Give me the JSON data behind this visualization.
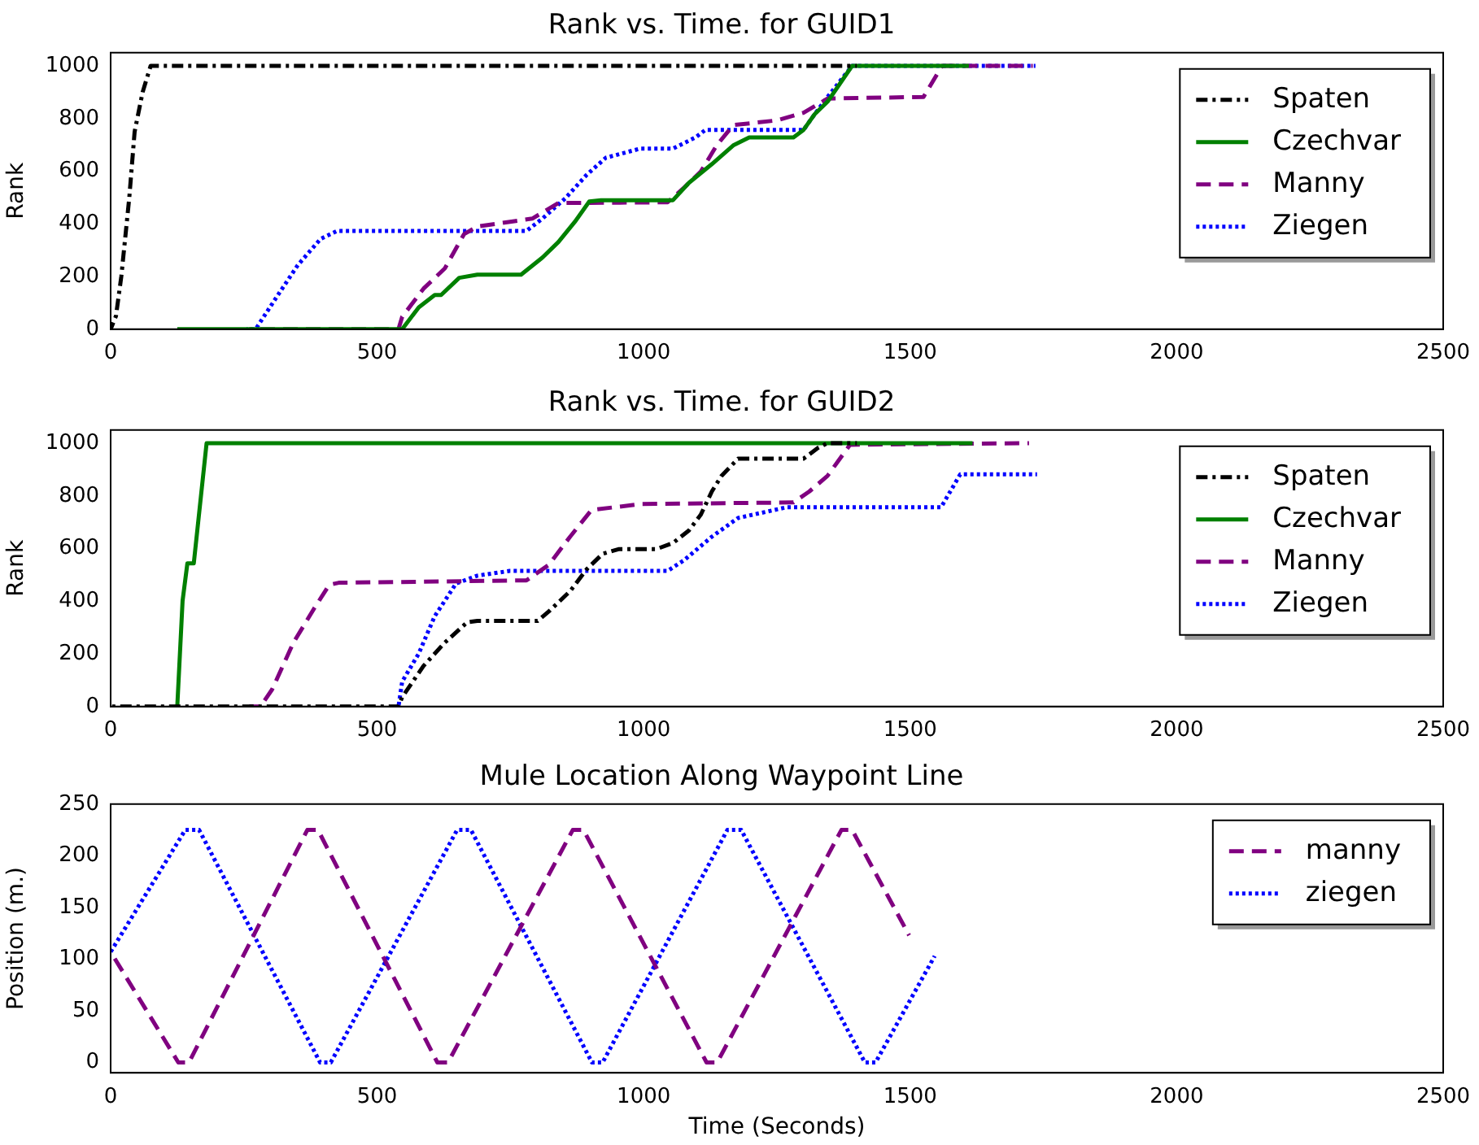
{
  "chart_data": [
    {
      "type": "line",
      "title": "Rank vs. Time. for GUID1",
      "ylabel": "Rank",
      "xlim": [
        0,
        2500
      ],
      "xticks": [
        0,
        500,
        1000,
        1500,
        2000,
        2500
      ],
      "ylim": [
        0,
        1050
      ],
      "yticks": [
        0,
        200,
        400,
        600,
        800,
        1000
      ],
      "grid": false,
      "legend": "top right",
      "series": [
        {
          "name": "Spaten",
          "color": "#000000",
          "line_style": "dashdot",
          "x": [
            0,
            10,
            20,
            35,
            45,
            60,
            75,
            1400
          ],
          "values": [
            0,
            50,
            200,
            500,
            750,
            900,
            1000,
            1000
          ]
        },
        {
          "name": "Czechvar",
          "color": "#008000",
          "line_style": "solid",
          "x": [
            125,
            540,
            547,
            578,
            608,
            620,
            654,
            688,
            770,
            810,
            840,
            871,
            898,
            920,
            1055,
            1085,
            1128,
            1168,
            1198,
            1281,
            1300,
            1321,
            1345,
            1391,
            1610
          ],
          "values": [
            0,
            0,
            0,
            83,
            130,
            130,
            195,
            207,
            207,
            272,
            331,
            408,
            485,
            490,
            490,
            556,
            627,
            698,
            728,
            728,
            757,
            817,
            864,
            1000,
            1000
          ]
        },
        {
          "name": "Manny",
          "color": "#800080",
          "line_style": "dashed",
          "x": [
            260,
            540,
            547,
            587,
            627,
            663,
            688,
            791,
            840,
            1045,
            1076,
            1107,
            1137,
            1168,
            1250,
            1300,
            1345,
            1525,
            1560,
            1730
          ],
          "values": [
            0,
            0,
            47,
            154,
            231,
            361,
            390,
            420,
            479,
            482,
            538,
            598,
            698,
            775,
            793,
            822,
            876,
            882,
            1000,
            1000
          ]
        },
        {
          "name": "Ziegen",
          "color": "#0000ff",
          "line_style": "dotted",
          "x": [
            255,
            272,
            312,
            351,
            394,
            425,
            780,
            810,
            853,
            893,
            929,
            994,
            1055,
            1097,
            1116,
            1300,
            1321,
            1345,
            1391,
            1735
          ],
          "values": [
            0,
            0,
            124,
            243,
            343,
            373,
            373,
            420,
            497,
            586,
            651,
            686,
            686,
            728,
            757,
            757,
            817,
            882,
            1000,
            1000
          ]
        }
      ]
    },
    {
      "type": "line",
      "title": "Rank vs. Time. for GUID2",
      "ylabel": "Rank",
      "xlim": [
        0,
        2500
      ],
      "xticks": [
        0,
        500,
        1000,
        1500,
        2000,
        2500
      ],
      "ylim": [
        0,
        1050
      ],
      "yticks": [
        0,
        200,
        400,
        600,
        800,
        1000
      ],
      "grid": false,
      "legend": "top right",
      "series": [
        {
          "name": "Spaten",
          "color": "#000000",
          "line_style": "dashdot",
          "x": [
            0,
            540,
            547,
            587,
            627,
            669,
            688,
            801,
            822,
            862,
            893,
            923,
            954,
            1024,
            1055,
            1085,
            1107,
            1128,
            1146,
            1177,
            1300,
            1327,
            1345,
            1400
          ],
          "values": [
            0,
            0,
            36,
            154,
            243,
            320,
            325,
            325,
            361,
            438,
            521,
            580,
            598,
            598,
            621,
            669,
            728,
            817,
            876,
            941,
            941,
            982,
            1000,
            1000
          ]
        },
        {
          "name": "Czechvar",
          "color": "#008000",
          "line_style": "solid",
          "x": [
            125,
            135,
            144,
            156,
            180,
            1617
          ],
          "values": [
            0,
            402,
            544,
            544,
            1000,
            1000
          ]
        },
        {
          "name": "Manny",
          "color": "#800080",
          "line_style": "dashed",
          "x": [
            260,
            281,
            303,
            343,
            382,
            410,
            428,
            780,
            822,
            862,
            902,
            994,
            1281,
            1311,
            1345,
            1387,
            1723
          ],
          "values": [
            0,
            0,
            65,
            243,
            373,
            462,
            470,
            479,
            538,
            645,
            746,
            769,
            775,
            817,
            876,
            994,
            1000
          ]
        },
        {
          "name": "Ziegen",
          "color": "#0000ff",
          "line_style": "dotted",
          "x": [
            540,
            547,
            578,
            608,
            648,
            688,
            749,
            1045,
            1076,
            1128,
            1177,
            1269,
            1558,
            1594,
            1738
          ],
          "values": [
            0,
            95,
            201,
            343,
            467,
            497,
            515,
            515,
            556,
            645,
            716,
            757,
            757,
            882,
            882
          ]
        }
      ]
    },
    {
      "type": "line",
      "title": "Mule Location Along Waypoint Line",
      "xlabel": "Time (Seconds)",
      "ylabel": "Position (m.)",
      "xlim": [
        0,
        2500
      ],
      "xticks": [
        0,
        500,
        1000,
        1500,
        2000,
        2500
      ],
      "ylim": [
        -10,
        250
      ],
      "yticks": [
        0,
        50,
        100,
        150,
        200,
        250
      ],
      "grid": false,
      "legend": "top right",
      "series": [
        {
          "name": "manny",
          "color": "#800080",
          "line_style": "dashed",
          "x": [
            0,
            127,
            147,
            369,
            389,
            613,
            633,
            867,
            887,
            1118,
            1138,
            1371,
            1391,
            1498
          ],
          "values": [
            107,
            0,
            0,
            225,
            225,
            0,
            0,
            225,
            225,
            0,
            0,
            225,
            225,
            123
          ]
        },
        {
          "name": "ziegen",
          "color": "#0000ff",
          "line_style": "dotted",
          "x": [
            0,
            140,
            166,
            393,
            413,
            650,
            676,
            903,
            923,
            1157,
            1183,
            1415,
            1435,
            1546
          ],
          "values": [
            107,
            225,
            225,
            0,
            0,
            225,
            225,
            0,
            0,
            225,
            225,
            0,
            0,
            103
          ]
        }
      ]
    }
  ]
}
